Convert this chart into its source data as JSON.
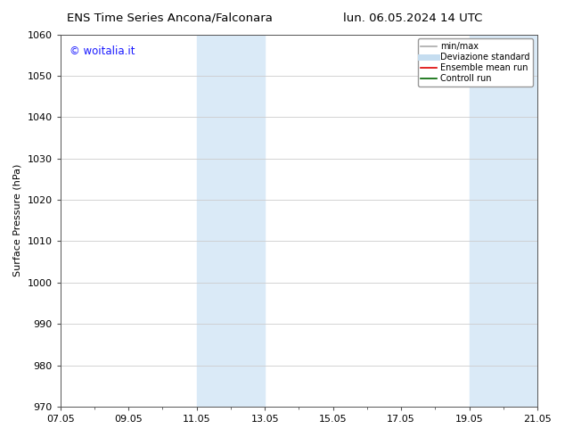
{
  "title_left": "ENS Time Series Ancona/Falconara",
  "title_right": "lun. 06.05.2024 14 UTC",
  "ylabel": "Surface Pressure (hPa)",
  "ylim": [
    970,
    1060
  ],
  "yticks": [
    970,
    980,
    990,
    1000,
    1010,
    1020,
    1030,
    1040,
    1050,
    1060
  ],
  "xtick_labels": [
    "07.05",
    "09.05",
    "11.05",
    "13.05",
    "15.05",
    "17.05",
    "19.05",
    "21.05"
  ],
  "xtick_positions": [
    0,
    2,
    4,
    6,
    8,
    10,
    12,
    14
  ],
  "shade_regions": [
    {
      "xstart": 4.0,
      "xend": 5.0,
      "color": "#daeaf7"
    },
    {
      "xstart": 5.0,
      "xend": 6.0,
      "color": "#daeaf7"
    },
    {
      "xstart": 12.0,
      "xend": 13.0,
      "color": "#daeaf7"
    },
    {
      "xstart": 13.0,
      "xend": 14.0,
      "color": "#daeaf7"
    }
  ],
  "watermark_text": "© woitalia.it",
  "watermark_color": "#1a1aff",
  "legend_items": [
    {
      "label": "min/max",
      "color": "#aaaaaa",
      "lw": 1.2,
      "style": "solid"
    },
    {
      "label": "Deviazione standard",
      "color": "#c5ddf0",
      "lw": 5,
      "style": "solid"
    },
    {
      "label": "Ensemble mean run",
      "color": "#dd0000",
      "lw": 1.2,
      "style": "solid"
    },
    {
      "label": "Controll run",
      "color": "#006600",
      "lw": 1.2,
      "style": "solid"
    }
  ],
  "bg_color": "#ffffff",
  "plot_bg_color": "#ffffff",
  "grid_color": "#cccccc",
  "title_fontsize": 9.5,
  "tick_fontsize": 8,
  "ylabel_fontsize": 8,
  "watermark_fontsize": 8.5
}
